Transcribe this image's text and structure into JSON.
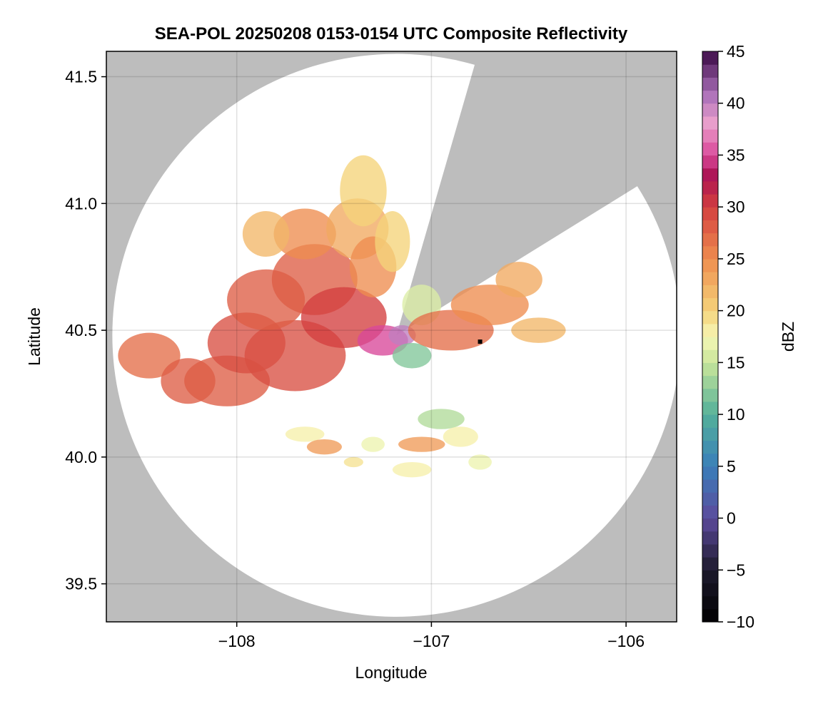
{
  "chart_data": {
    "type": "heatmap",
    "title": "SEA-POL 20250208 0153-0154 UTC Composite Reflectivity",
    "xlabel": "Longitude",
    "ylabel": "Latitude",
    "xlim": [
      -108.67,
      -105.74
    ],
    "ylim": [
      39.35,
      41.6
    ],
    "xticks": [
      -108,
      -107,
      -106
    ],
    "xtick_labels": [
      "−108",
      "−107",
      "−106"
    ],
    "yticks": [
      39.5,
      40.0,
      40.5,
      41.0,
      41.5
    ],
    "ytick_labels": [
      "39.5",
      "40.0",
      "40.5",
      "41.0",
      "41.5"
    ],
    "grid": true,
    "background_color": "#bdbdbd",
    "radar": {
      "center_lon": -107.18,
      "center_lat": 40.48,
      "max_range_deg_lat": 1.11,
      "blocked_sectors_az_deg": [
        [
          16,
          58
        ]
      ]
    },
    "marker": {
      "lon": -106.75,
      "lat": 40.455,
      "color": "#000000"
    },
    "colorbar": {
      "label": "dBZ",
      "min": -10,
      "max": 45,
      "step": 1.25,
      "ticks": [
        -10,
        -5,
        0,
        5,
        10,
        15,
        20,
        25,
        30,
        35,
        40,
        45
      ],
      "tick_labels": [
        "−10",
        "−5",
        "0",
        "5",
        "10",
        "15",
        "20",
        "25",
        "30",
        "35",
        "40",
        "45"
      ],
      "stops": [
        {
          "v": -10,
          "c": "#000000"
        },
        {
          "v": -5,
          "c": "#1d1a2c"
        },
        {
          "v": 0,
          "c": "#5c4a9c"
        },
        {
          "v": 5,
          "c": "#3a7fba"
        },
        {
          "v": 10,
          "c": "#53b09a"
        },
        {
          "v": 15,
          "c": "#c9e69a"
        },
        {
          "v": 17.5,
          "c": "#f6f7b6"
        },
        {
          "v": 20,
          "c": "#f5d37a"
        },
        {
          "v": 25,
          "c": "#ee8d4f"
        },
        {
          "v": 30,
          "c": "#d43f3f"
        },
        {
          "v": 33,
          "c": "#ab1454"
        },
        {
          "v": 35,
          "c": "#d9489a"
        },
        {
          "v": 38,
          "c": "#eba0cc"
        },
        {
          "v": 41,
          "c": "#a96fb8"
        },
        {
          "v": 45,
          "c": "#3b0a45"
        }
      ]
    },
    "echo_regions": [
      {
        "lon": -108.45,
        "lat": 40.4,
        "rx": 0.16,
        "ry": 0.09,
        "dbz": 27
      },
      {
        "lon": -108.25,
        "lat": 40.3,
        "rx": 0.14,
        "ry": 0.09,
        "dbz": 28
      },
      {
        "lon": -108.05,
        "lat": 40.3,
        "rx": 0.22,
        "ry": 0.1,
        "dbz": 28
      },
      {
        "lon": -107.95,
        "lat": 40.45,
        "rx": 0.2,
        "ry": 0.12,
        "dbz": 29
      },
      {
        "lon": -107.7,
        "lat": 40.4,
        "rx": 0.26,
        "ry": 0.14,
        "dbz": 29
      },
      {
        "lon": -107.85,
        "lat": 40.62,
        "rx": 0.2,
        "ry": 0.12,
        "dbz": 28
      },
      {
        "lon": -107.6,
        "lat": 40.7,
        "rx": 0.22,
        "ry": 0.14,
        "dbz": 28
      },
      {
        "lon": -107.45,
        "lat": 40.55,
        "rx": 0.22,
        "ry": 0.12,
        "dbz": 30
      },
      {
        "lon": -107.65,
        "lat": 40.88,
        "rx": 0.16,
        "ry": 0.1,
        "dbz": 25
      },
      {
        "lon": -107.38,
        "lat": 40.9,
        "rx": 0.16,
        "ry": 0.12,
        "dbz": 23
      },
      {
        "lon": -107.3,
        "lat": 40.75,
        "rx": 0.12,
        "ry": 0.12,
        "dbz": 25
      },
      {
        "lon": -107.35,
        "lat": 41.05,
        "rx": 0.12,
        "ry": 0.14,
        "dbz": 20
      },
      {
        "lon": -107.85,
        "lat": 40.88,
        "rx": 0.12,
        "ry": 0.09,
        "dbz": 22
      },
      {
        "lon": -107.2,
        "lat": 40.85,
        "rx": 0.09,
        "ry": 0.12,
        "dbz": 20
      },
      {
        "lon": -107.05,
        "lat": 40.6,
        "rx": 0.1,
        "ry": 0.08,
        "dbz": 16
      },
      {
        "lon": -107.25,
        "lat": 40.46,
        "rx": 0.13,
        "ry": 0.06,
        "dbz": 35
      },
      {
        "lon": -107.15,
        "lat": 40.48,
        "rx": 0.07,
        "ry": 0.04,
        "dbz": 40
      },
      {
        "lon": -107.1,
        "lat": 40.4,
        "rx": 0.1,
        "ry": 0.05,
        "dbz": 12
      },
      {
        "lon": -106.9,
        "lat": 40.5,
        "rx": 0.22,
        "ry": 0.08,
        "dbz": 27
      },
      {
        "lon": -106.7,
        "lat": 40.6,
        "rx": 0.2,
        "ry": 0.08,
        "dbz": 25
      },
      {
        "lon": -106.55,
        "lat": 40.7,
        "rx": 0.12,
        "ry": 0.07,
        "dbz": 23
      },
      {
        "lon": -106.45,
        "lat": 40.5,
        "rx": 0.14,
        "ry": 0.05,
        "dbz": 22
      },
      {
        "lon": -106.95,
        "lat": 40.15,
        "rx": 0.12,
        "ry": 0.04,
        "dbz": 14
      },
      {
        "lon": -106.85,
        "lat": 40.08,
        "rx": 0.09,
        "ry": 0.04,
        "dbz": 18
      },
      {
        "lon": -107.65,
        "lat": 40.09,
        "rx": 0.1,
        "ry": 0.03,
        "dbz": 18
      },
      {
        "lon": -107.55,
        "lat": 40.04,
        "rx": 0.09,
        "ry": 0.03,
        "dbz": 24
      },
      {
        "lon": -107.05,
        "lat": 40.05,
        "rx": 0.12,
        "ry": 0.03,
        "dbz": 24
      },
      {
        "lon": -107.3,
        "lat": 40.05,
        "rx": 0.06,
        "ry": 0.03,
        "dbz": 17
      },
      {
        "lon": -107.1,
        "lat": 39.95,
        "rx": 0.1,
        "ry": 0.03,
        "dbz": 18
      },
      {
        "lon": -106.75,
        "lat": 39.98,
        "rx": 0.06,
        "ry": 0.03,
        "dbz": 17
      },
      {
        "lon": -107.4,
        "lat": 39.98,
        "rx": 0.05,
        "ry": 0.02,
        "dbz": 19
      }
    ]
  }
}
